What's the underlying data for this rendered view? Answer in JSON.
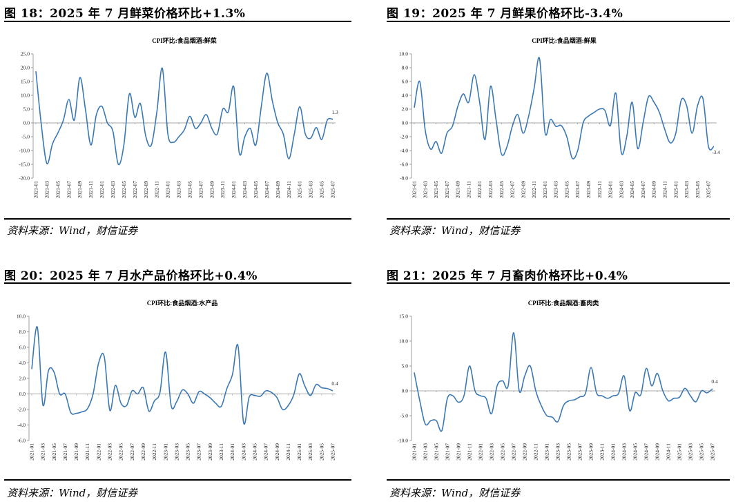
{
  "source_text": "资料来源：Wind，财信证券",
  "chart_data": [
    {
      "type": "line",
      "figure_title": "图 18：2025 年 7 月鲜菜价格环比+1.3%",
      "title": "CPI环比:食品烟酒:鲜菜",
      "ylim": [
        -20,
        25
      ],
      "yticks": [
        "25.0",
        "20.0",
        "15.0",
        "10.0",
        "5.0",
        "0.0",
        "-5.0",
        "-10.0",
        "-15.0",
        "-20.0"
      ],
      "ytick_values": [
        25,
        20,
        15,
        10,
        5,
        0,
        -5,
        -10,
        -15,
        -20
      ],
      "xlabels": [
        "2021-01",
        "2021-03",
        "2021-05",
        "2021-07",
        "2021-09",
        "2021-11",
        "2022-01",
        "2022-03",
        "2022-05",
        "2022-07",
        "2022-09",
        "2022-11",
        "2023-01",
        "2023-03",
        "2023-05",
        "2023-07",
        "2023-09",
        "2023-11",
        "2024-01",
        "2024-03",
        "2024-05",
        "2024-07",
        "2024-09",
        "2024-11",
        "2025-01",
        "2025-03",
        "2025-05",
        "2025-07"
      ],
      "values": [
        18.7,
        -1.0,
        -14.7,
        -7.7,
        -3.6,
        1.0,
        8.5,
        1.0,
        16.4,
        5.0,
        -8.0,
        3.0,
        6.0,
        0.0,
        -3.0,
        -15.0,
        -8.0,
        10.5,
        2.0,
        7.0,
        -5.0,
        -8.0,
        4.0,
        19.8,
        -4.0,
        -7.0,
        -5.0,
        -2.5,
        2.4,
        -2.0,
        0.0,
        3.0,
        -2.0,
        -4.0,
        5.0,
        4.0,
        13.0,
        -11.0,
        -5.0,
        -2.0,
        -8.0,
        6.0,
        18.0,
        8.0,
        0.0,
        -4.0,
        -13.0,
        -4.0,
        5.9,
        -4.0,
        -5.5,
        -1.7,
        -6.0,
        1.0,
        1.3
      ],
      "end_label": "1.3"
    },
    {
      "type": "line",
      "figure_title": "图 19：2025 年 7 月鲜果价格环比-3.4%",
      "title": "CPI环比:食品烟酒:鲜果",
      "ylim": [
        -8,
        10
      ],
      "yticks": [
        "10.0",
        "8.0",
        "6.0",
        "4.0",
        "2.0",
        "0.0",
        "-2.0",
        "-4.0",
        "-6.0",
        "-8.0"
      ],
      "ytick_values": [
        10,
        8,
        6,
        4,
        2,
        0,
        -2,
        -4,
        -6,
        -8
      ],
      "xlabels": [
        "2021-01",
        "2021-03",
        "2021-05",
        "2021-07",
        "2021-09",
        "2021-11",
        "2022-01",
        "2022-03",
        "2022-05",
        "2022-07",
        "2022-09",
        "2022-11",
        "2023-01",
        "2023-03",
        "2023-05",
        "2023-07",
        "2023-09",
        "2023-11",
        "2024-01",
        "2024-03",
        "2024-05",
        "2024-07",
        "2024-09",
        "2024-11",
        "2025-01",
        "2025-03",
        "2025-05",
        "2025-07"
      ],
      "values": [
        2.2,
        6.0,
        -1.0,
        -3.8,
        -2.7,
        -4.4,
        -1.5,
        -0.5,
        2.4,
        4.2,
        3.0,
        7.0,
        3.0,
        -2.4,
        5.3,
        0.5,
        -4.5,
        -3.5,
        -0.5,
        1.2,
        -1.5,
        1.0,
        5.0,
        9.3,
        -1.4,
        0.5,
        -0.5,
        -0.4,
        -2.0,
        -5.1,
        -4.0,
        0.0,
        1.0,
        1.5,
        2.0,
        1.8,
        -0.4,
        4.3,
        -4.3,
        -2.0,
        3.0,
        -3.7,
        0.0,
        3.8,
        3.0,
        1.5,
        -1.0,
        -2.9,
        -1.5,
        3.3,
        2.5,
        -1.5,
        2.5,
        3.5,
        -3.4,
        -3.4
      ],
      "end_label": "-3.4"
    },
    {
      "type": "line",
      "figure_title": "图 20：2025 年 7 月水产品价格环比+0.4%",
      "title": "CPI环比:食品烟酒:水产品",
      "ylim": [
        -6,
        10
      ],
      "yticks": [
        "10.0",
        "8.0",
        "6.0",
        "4.0",
        "2.0",
        "0.0",
        "-2.0",
        "-4.0",
        "-6.0"
      ],
      "ytick_values": [
        10,
        8,
        6,
        4,
        2,
        0,
        -2,
        -4,
        -6
      ],
      "xlabels": [
        "2021-01",
        "2021-03",
        "2021-05",
        "2021-07",
        "2021-09",
        "2021-11",
        "2022-01",
        "2022-03",
        "2022-05",
        "2022-07",
        "2022-09",
        "2022-11",
        "2023-01",
        "2023-03",
        "2023-05",
        "2023-07",
        "2023-09",
        "2023-11",
        "2024-01",
        "2024-03",
        "2024-05",
        "2024-07",
        "2024-09",
        "2024-11",
        "2025-01",
        "2025-03",
        "2025-05",
        "2025-07"
      ],
      "values": [
        3.2,
        8.6,
        -1.4,
        3.0,
        2.8,
        0.0,
        0.0,
        -2.4,
        -2.5,
        -2.3,
        -1.9,
        0.0,
        4.0,
        4.8,
        -2.1,
        1.1,
        -1.2,
        -1.5,
        0.4,
        0.0,
        0.8,
        -2.2,
        -0.9,
        0.2,
        5.4,
        -1.5,
        -1.0,
        0.5,
        0.0,
        -1.2,
        0.3,
        0.0,
        -0.5,
        -1.2,
        -1.6,
        0.7,
        2.5,
        6.2,
        -3.7,
        -0.4,
        -0.2,
        -0.3,
        0.4,
        0.2,
        -0.5,
        -2.0,
        -1.5,
        -0.1,
        2.6,
        1.0,
        -0.2,
        1.2,
        0.8,
        0.7,
        0.4
      ],
      "end_label": "0.4"
    },
    {
      "type": "line",
      "figure_title": "图 21：2025 年 7 月畜肉价格环比+0.4%",
      "title": "CPI环比:食品烟酒:畜肉类",
      "ylim": [
        -10,
        15
      ],
      "yticks": [
        "15.0",
        "10.0",
        "5.0",
        "0.0",
        "-5.0",
        "-10.0"
      ],
      "ytick_values": [
        15,
        10,
        5,
        0,
        -5,
        -10
      ],
      "xlabels": [
        "2021-01",
        "2021-03",
        "2021-05",
        "2021-07",
        "2021-09",
        "2021-11",
        "2022-01",
        "2022-03",
        "2022-05",
        "2022-07",
        "2022-09",
        "2022-11",
        "2023-01",
        "2023-03",
        "2023-05",
        "2023-07",
        "2023-09",
        "2023-11",
        "2024-01",
        "2024-03",
        "2024-05",
        "2024-07",
        "2024-09",
        "2024-11",
        "2025-01",
        "2025-03",
        "2025-05",
        "2025-07"
      ],
      "values": [
        3.7,
        -2.0,
        -6.7,
        -6.0,
        -6.0,
        -8.0,
        -1.5,
        -1.0,
        -2.3,
        -1.0,
        5.0,
        0.0,
        -1.0,
        -1.5,
        -4.6,
        1.0,
        2.0,
        1.0,
        11.7,
        0.0,
        3.0,
        5.0,
        0.0,
        -3.0,
        -5.0,
        -5.3,
        -6.2,
        -3.0,
        -2.0,
        -1.8,
        -1.2,
        -0.5,
        4.7,
        -0.4,
        -1.0,
        -1.5,
        -1.0,
        -0.5,
        3.0,
        -4.0,
        -0.4,
        -0.8,
        4.5,
        1.0,
        3.5,
        0.0,
        -2.0,
        -1.5,
        -1.3,
        0.5,
        -1.0,
        -2.2,
        0.0,
        -0.4,
        0.4
      ],
      "end_label": "0.4"
    }
  ],
  "colors": {
    "line": "#3a78b5"
  }
}
